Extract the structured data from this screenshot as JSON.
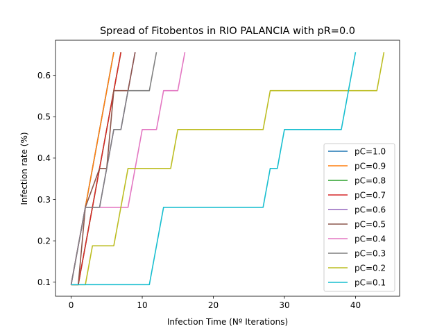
{
  "chart_data": {
    "type": "line",
    "title": "Spread of Fitobentos in RIO PALANCIA with pR=0.0",
    "xlabel": "Infection Time (Nº Iterations)",
    "ylabel": "Infection rate (%)",
    "xlim": [
      -2.2,
      46.2
    ],
    "ylim": [
      0.066,
      0.685
    ],
    "xticks": [
      0,
      10,
      20,
      30,
      40
    ],
    "yticks": [
      0.1,
      0.2,
      0.3,
      0.4,
      0.5,
      0.6
    ],
    "legend_position": "lower-right",
    "series": [
      {
        "name": "pC=1.0",
        "color": "#1f77b4",
        "x": [
          0,
          6
        ],
        "y": [
          0.094,
          0.656
        ]
      },
      {
        "name": "pC=0.9",
        "color": "#ff7f0e",
        "x": [
          0,
          6
        ],
        "y": [
          0.094,
          0.656
        ]
      },
      {
        "name": "pC=0.8",
        "color": "#2ca02c",
        "x": [
          0,
          1,
          6,
          7
        ],
        "y": [
          0.094,
          0.094,
          0.563,
          0.656
        ]
      },
      {
        "name": "pC=0.7",
        "color": "#d62728",
        "x": [
          0,
          1,
          6,
          7
        ],
        "y": [
          0.094,
          0.094,
          0.563,
          0.656
        ]
      },
      {
        "name": "pC=0.6",
        "color": "#9467bd",
        "x": [
          0,
          1,
          2,
          4,
          5,
          6,
          7,
          8,
          9
        ],
        "y": [
          0.094,
          0.188,
          0.281,
          0.281,
          0.375,
          0.469,
          0.469,
          0.563,
          0.656
        ]
      },
      {
        "name": "pC=0.5",
        "color": "#8c564b",
        "x": [
          0,
          1,
          2,
          4,
          5,
          6,
          7,
          8,
          9
        ],
        "y": [
          0.094,
          0.094,
          0.281,
          0.375,
          0.375,
          0.563,
          0.563,
          0.563,
          0.656
        ]
      },
      {
        "name": "pC=0.4",
        "color": "#e377c2",
        "x": [
          0,
          2,
          8,
          10,
          12,
          13,
          15,
          16
        ],
        "y": [
          0.094,
          0.281,
          0.281,
          0.469,
          0.469,
          0.563,
          0.563,
          0.656
        ]
      },
      {
        "name": "pC=0.3",
        "color": "#7f7f7f",
        "x": [
          0,
          2,
          4,
          6,
          7,
          8,
          11,
          12
        ],
        "y": [
          0.094,
          0.281,
          0.281,
          0.469,
          0.469,
          0.563,
          0.563,
          0.656
        ]
      },
      {
        "name": "pC=0.2",
        "color": "#bcbd22",
        "x": [
          0,
          2,
          3,
          6,
          8,
          14,
          15,
          27,
          28,
          43,
          44
        ],
        "y": [
          0.094,
          0.094,
          0.188,
          0.188,
          0.375,
          0.375,
          0.469,
          0.469,
          0.563,
          0.563,
          0.656
        ]
      },
      {
        "name": "pC=0.1",
        "color": "#17becf",
        "x": [
          0,
          11,
          13,
          27,
          28,
          29,
          30,
          38,
          40
        ],
        "y": [
          0.094,
          0.094,
          0.281,
          0.281,
          0.375,
          0.375,
          0.469,
          0.469,
          0.656
        ]
      }
    ]
  }
}
